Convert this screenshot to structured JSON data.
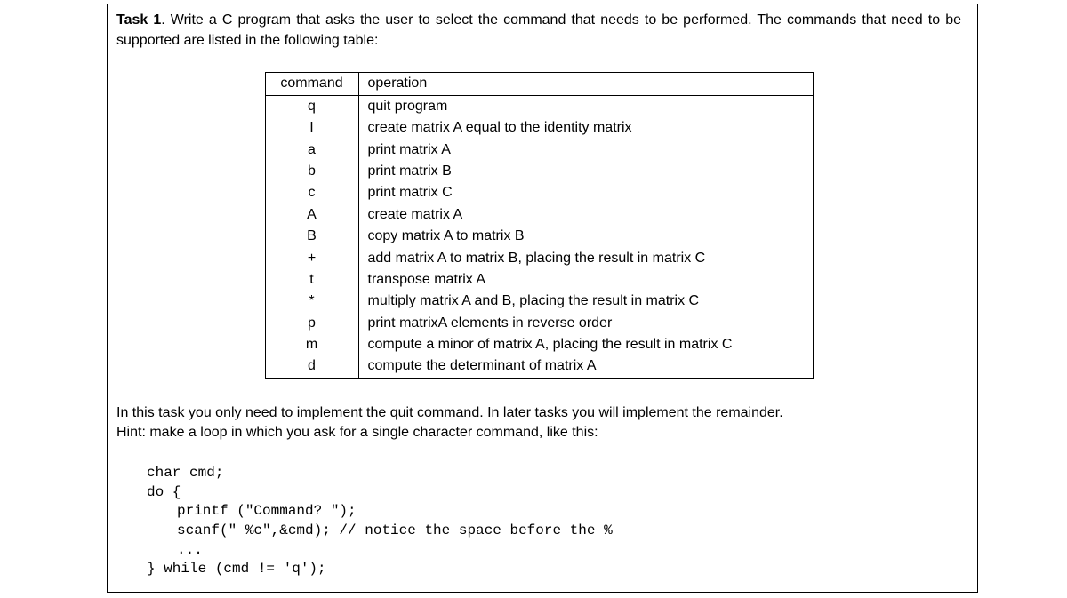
{
  "intro": {
    "bold_label": "Task 1",
    "text_part1": ".   Write a C program that asks the user to select the command that needs to be performed.  The commands that need to be supported are listed in the following table:"
  },
  "table": {
    "header": {
      "cmd": "command",
      "op": "operation"
    },
    "rows": [
      {
        "cmd": "q",
        "op": "quit program"
      },
      {
        "cmd": "I",
        "op": "create matrix A equal to the identity matrix"
      },
      {
        "cmd": "a",
        "op": "print matrix A"
      },
      {
        "cmd": "b",
        "op": "print matrix B"
      },
      {
        "cmd": "c",
        "op": "print matrix C"
      },
      {
        "cmd": "A",
        "op": "create matrix A"
      },
      {
        "cmd": "B",
        "op": "copy matrix A to matrix B"
      },
      {
        "cmd": "+",
        "op": "add matrix A to matrix B, placing the result in matrix C"
      },
      {
        "cmd": "t",
        "op": "transpose matrix A"
      },
      {
        "cmd": "*",
        "op": "multiply matrix A and B, placing the result in matrix C"
      },
      {
        "cmd": "p",
        "op": "print matrixA elements in reverse order"
      },
      {
        "cmd": "m",
        "op": "compute a minor of matrix A, placing the result in matrix C"
      },
      {
        "cmd": "d",
        "op": "compute the determinant of matrix A"
      }
    ]
  },
  "after": {
    "line1": "In this task you only need to implement the quit command. In later tasks you will implement the remainder.",
    "line2": "Hint: make a loop in which you ask for a single character command, like this:"
  },
  "code": {
    "l1": "char cmd;",
    "l2": "do {",
    "l3": "printf (\"Command? \");",
    "l4": "scanf(\" %c\",&cmd); // notice the space before the %",
    "l5": "...",
    "l6": "} while (cmd != 'q');"
  }
}
